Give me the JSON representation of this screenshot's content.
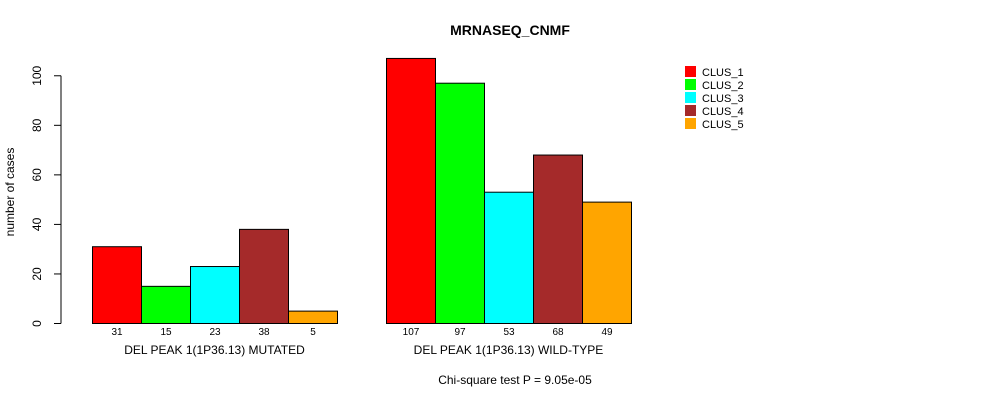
{
  "chart_data": {
    "type": "bar",
    "title": "MRNASEQ_CNMF",
    "ylabel": "number of cases",
    "ylim": [
      0,
      110
    ],
    "yticks": [
      0,
      20,
      40,
      60,
      80,
      100
    ],
    "groups": [
      {
        "label": "DEL PEAK  1(1P36.13) MUTATED",
        "values": [
          31,
          15,
          23,
          38,
          5
        ]
      },
      {
        "label": "DEL PEAK  1(1P36.13) WILD-TYPE",
        "values": [
          107,
          97,
          53,
          68,
          49
        ]
      }
    ],
    "series": [
      {
        "name": "CLUS_1",
        "color": "#ff0000"
      },
      {
        "name": "CLUS_2",
        "color": "#00ff00"
      },
      {
        "name": "CLUS_3",
        "color": "#00ffff"
      },
      {
        "name": "CLUS_4",
        "color": "#a52a2a"
      },
      {
        "name": "CLUS_5",
        "color": "#ffa500"
      }
    ],
    "legend_position": "top-right",
    "footnote": "Chi-square test P = 9.05e-05"
  }
}
